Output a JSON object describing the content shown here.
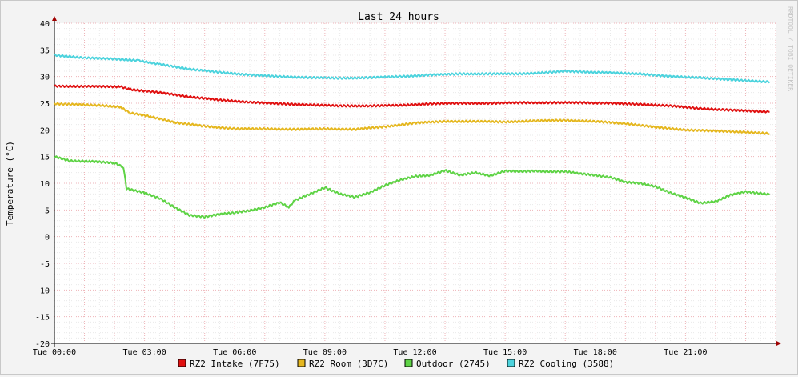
{
  "chart_data": {
    "type": "line",
    "title": "Last 24 hours",
    "ylabel": "Temperature (°C)",
    "xlabel": "",
    "watermark": "RRDTOOL / TOBI OETIKER",
    "ylim": [
      -20,
      40
    ],
    "yticks": [
      40,
      35,
      30,
      25,
      20,
      15,
      10,
      5,
      0,
      -5,
      -10,
      -15,
      -20
    ],
    "xlim": [
      0,
      24
    ],
    "xticks": [
      {
        "value": 0,
        "label": "Tue 00:00"
      },
      {
        "value": 3,
        "label": "Tue 03:00"
      },
      {
        "value": 6,
        "label": "Tue 06:00"
      },
      {
        "value": 9,
        "label": "Tue 09:00"
      },
      {
        "value": 12,
        "label": "Tue 12:00"
      },
      {
        "value": 15,
        "label": "Tue 15:00"
      },
      {
        "value": 18,
        "label": "Tue 18:00"
      },
      {
        "value": 21,
        "label": "Tue 21:00"
      }
    ],
    "grid": true,
    "legend_position": "bottom",
    "series": [
      {
        "name": "RZ2 Intake (7F75)",
        "color": "#e01010",
        "x": [
          0,
          2.2,
          2.5,
          3.5,
          4.5,
          5.5,
          6.5,
          7.5,
          8.5,
          9.5,
          10.5,
          11.5,
          12.5,
          13.5,
          14.5,
          15.5,
          16.5,
          17.5,
          18.5,
          19.5,
          20.5,
          21.5,
          22.5,
          23.8
        ],
        "y": [
          28.2,
          28.1,
          27.6,
          27.0,
          26.2,
          25.6,
          25.2,
          24.9,
          24.7,
          24.5,
          24.5,
          24.6,
          24.9,
          25.0,
          25.0,
          25.1,
          25.1,
          25.1,
          25.0,
          24.8,
          24.5,
          24.0,
          23.7,
          23.4
        ]
      },
      {
        "name": "RZ2 Room (3D7C)",
        "color": "#e5b71f",
        "x": [
          0,
          1.5,
          2.2,
          2.5,
          3.2,
          4.0,
          5.0,
          6.0,
          7.0,
          8.0,
          9.0,
          10.0,
          11.0,
          12.0,
          13.0,
          14.0,
          15.0,
          16.0,
          17.0,
          18.0,
          19.0,
          20.0,
          21.0,
          22.0,
          23.0,
          23.8
        ],
        "y": [
          24.9,
          24.6,
          24.3,
          23.2,
          22.5,
          21.4,
          20.7,
          20.2,
          20.2,
          20.1,
          20.2,
          20.1,
          20.6,
          21.3,
          21.6,
          21.6,
          21.5,
          21.7,
          21.8,
          21.6,
          21.2,
          20.5,
          20.0,
          19.8,
          19.6,
          19.3
        ]
      },
      {
        "name": "Outdoor (2745)",
        "color": "#5ed345",
        "x": [
          0,
          0.5,
          1.2,
          2.0,
          2.3,
          2.4,
          3.0,
          3.5,
          4.0,
          4.5,
          5.0,
          5.5,
          6.0,
          6.5,
          7.0,
          7.5,
          7.8,
          8.0,
          8.5,
          9.0,
          9.5,
          10.0,
          10.5,
          11.0,
          11.5,
          12.0,
          12.5,
          13.0,
          13.5,
          14.0,
          14.5,
          15.0,
          15.5,
          16.0,
          16.5,
          17.0,
          17.5,
          18.0,
          18.5,
          19.0,
          19.5,
          20.0,
          20.5,
          21.0,
          21.5,
          22.0,
          22.5,
          23.0,
          23.5,
          23.8
        ],
        "y": [
          15.0,
          14.2,
          14.1,
          13.8,
          13.0,
          9.0,
          8.2,
          7.2,
          5.5,
          4.0,
          3.7,
          4.2,
          4.5,
          4.9,
          5.5,
          6.4,
          5.5,
          6.8,
          8.0,
          9.2,
          8.0,
          7.4,
          8.3,
          9.6,
          10.6,
          11.3,
          11.5,
          12.4,
          11.5,
          12.0,
          11.4,
          12.3,
          12.2,
          12.3,
          12.2,
          12.2,
          11.8,
          11.5,
          11.1,
          10.2,
          10.0,
          9.4,
          8.2,
          7.3,
          6.3,
          6.6,
          7.8,
          8.4,
          8.1,
          7.9
        ]
      },
      {
        "name": "RZ2 Cooling (3588)",
        "color": "#4cd3dd",
        "x": [
          0,
          1.0,
          2.0,
          2.8,
          3.5,
          4.5,
          5.5,
          6.5,
          7.5,
          8.5,
          9.5,
          10.5,
          11.5,
          12.5,
          13.5,
          14.5,
          15.5,
          16.5,
          17.0,
          17.5,
          18.5,
          19.5,
          20.5,
          21.5,
          22.5,
          23.8
        ],
        "y": [
          34.0,
          33.5,
          33.3,
          33.0,
          32.3,
          31.4,
          30.8,
          30.3,
          30.0,
          29.8,
          29.7,
          29.8,
          30.0,
          30.3,
          30.5,
          30.5,
          30.5,
          30.8,
          31.0,
          30.9,
          30.7,
          30.5,
          30.0,
          29.8,
          29.4,
          29.0
        ]
      }
    ]
  }
}
